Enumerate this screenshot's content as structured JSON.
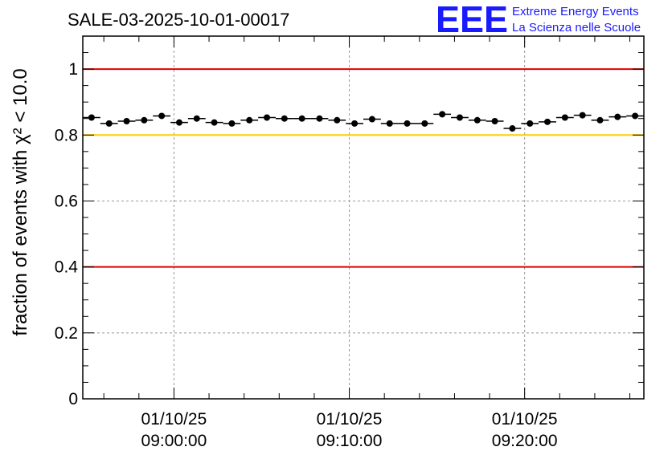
{
  "logo": {
    "mark": "EEE",
    "line1": "Extreme Energy Events",
    "line2": "La Scienza nelle Scuole",
    "color": "#1a1aff"
  },
  "chart_data": {
    "type": "scatter",
    "title": "SALE-03-2025-10-01-00017",
    "ylabel": "fraction of events with χ² < 10.0",
    "ylim": [
      0,
      1.1
    ],
    "yticks": [
      0,
      0.2,
      0.4,
      0.6,
      0.8,
      1
    ],
    "ytick_labels": [
      "0",
      "0.2",
      "0.4",
      "0.6",
      "0.8",
      "1"
    ],
    "xlim_minutes": [
      -5.2,
      26.8
    ],
    "xticks": [
      {
        "minute": 0,
        "date": "01/10/25",
        "time": "09:00:00"
      },
      {
        "minute": 10,
        "date": "01/10/25",
        "time": "09:10:00"
      },
      {
        "minute": 20,
        "date": "01/10/25",
        "time": "09:20:00"
      }
    ],
    "grid": true,
    "reference_lines": [
      {
        "y": 1.0,
        "color": "#e00000"
      },
      {
        "y": 0.8,
        "color": "#ffcc00"
      },
      {
        "y": 0.4,
        "color": "#e00000"
      }
    ],
    "bin_width_minutes": 1,
    "x": [
      -4.7,
      -3.7,
      -2.7,
      -1.7,
      -0.7,
      0.3,
      1.3,
      2.3,
      3.3,
      4.3,
      5.3,
      6.3,
      7.3,
      8.3,
      9.3,
      10.3,
      11.3,
      12.3,
      13.3,
      14.3,
      15.3,
      16.3,
      17.3,
      18.3,
      19.3,
      20.3,
      21.3,
      22.3,
      23.3,
      24.3,
      25.3,
      26.3
    ],
    "y": [
      0.853,
      0.835,
      0.842,
      0.845,
      0.858,
      0.838,
      0.85,
      0.838,
      0.835,
      0.845,
      0.853,
      0.85,
      0.85,
      0.85,
      0.845,
      0.835,
      0.848,
      0.835,
      0.835,
      0.835,
      0.863,
      0.853,
      0.845,
      0.842,
      0.82,
      0.835,
      0.84,
      0.853,
      0.86,
      0.845,
      0.855,
      0.858
    ],
    "marker_color": "#000000"
  }
}
